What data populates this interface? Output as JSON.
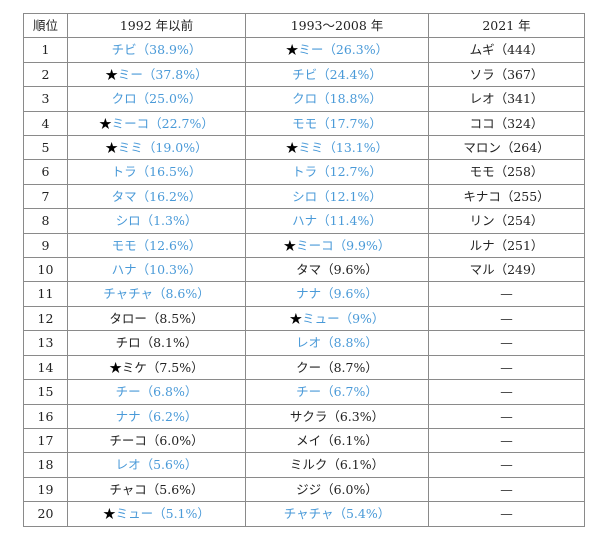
{
  "table": {
    "header": [
      "順位",
      "1992 年以前",
      "1993～2008 年",
      "2021 年"
    ],
    "rows": [
      {
        "rank": "1",
        "a": {
          "star": "",
          "text": "チビ（38.9%）",
          "blue": true
        },
        "b": {
          "star": "★",
          "text": "ミー（26.3%）",
          "blue": true
        },
        "c": "ムギ（444）"
      },
      {
        "rank": "2",
        "a": {
          "star": "★",
          "text": "ミー（37.8%）",
          "blue": true
        },
        "b": {
          "star": "",
          "text": "チビ（24.4%）",
          "blue": true
        },
        "c": "ソラ（367）"
      },
      {
        "rank": "3",
        "a": {
          "star": "",
          "text": "クロ（25.0%）",
          "blue": true
        },
        "b": {
          "star": "",
          "text": "クロ（18.8%）",
          "blue": true
        },
        "c": "レオ（341）"
      },
      {
        "rank": "4",
        "a": {
          "star": "★",
          "text": "ミーコ（22.7%）",
          "blue": true
        },
        "b": {
          "star": "",
          "text": "モモ（17.7%）",
          "blue": true
        },
        "c": "ココ（324）"
      },
      {
        "rank": "5",
        "a": {
          "star": "★",
          "text": "ミミ（19.0%）",
          "blue": true
        },
        "b": {
          "star": "★",
          "text": "ミミ（13.1%）",
          "blue": true
        },
        "c": "マロン（264）"
      },
      {
        "rank": "6",
        "a": {
          "star": "",
          "text": "トラ（16.5%）",
          "blue": true
        },
        "b": {
          "star": "",
          "text": "トラ（12.7%）",
          "blue": true
        },
        "c": "モモ（258）"
      },
      {
        "rank": "7",
        "a": {
          "star": "",
          "text": "タマ（16.2%）",
          "blue": true
        },
        "b": {
          "star": "",
          "text": "シロ（12.1%）",
          "blue": true
        },
        "c": "キナコ（255）"
      },
      {
        "rank": "8",
        "a": {
          "star": "",
          "text": "シロ（1.3%）",
          "blue": true
        },
        "b": {
          "star": "",
          "text": "ハナ（11.4%）",
          "blue": true
        },
        "c": "リン（254）"
      },
      {
        "rank": "9",
        "a": {
          "star": "",
          "text": "モモ（12.6%）",
          "blue": true
        },
        "b": {
          "star": "★",
          "text": "ミーコ（9.9%）",
          "blue": true
        },
        "c": "ルナ（251）"
      },
      {
        "rank": "10",
        "a": {
          "star": "",
          "text": "ハナ（10.3%）",
          "blue": true
        },
        "b": {
          "star": "",
          "text": "タマ（9.6%）",
          "blue": false
        },
        "c": "マル（249）"
      },
      {
        "rank": "11",
        "a": {
          "star": "",
          "text": "チャチャ（8.6%）",
          "blue": true
        },
        "b": {
          "star": "",
          "text": "ナナ（9.6%）",
          "blue": true
        },
        "c": "—"
      },
      {
        "rank": "12",
        "a": {
          "star": "",
          "text": "タロー（8.5%）",
          "blue": false
        },
        "b": {
          "star": "★",
          "text": "ミュー（9%）",
          "blue": true
        },
        "c": "—"
      },
      {
        "rank": "13",
        "a": {
          "star": "",
          "text": "チロ（8.1%）",
          "blue": false
        },
        "b": {
          "star": "",
          "text": "レオ（8.8%）",
          "blue": true
        },
        "c": "—"
      },
      {
        "rank": "14",
        "a": {
          "star": "★",
          "text": "ミケ（7.5%）",
          "blue": false
        },
        "b": {
          "star": "",
          "text": "クー（8.7%）",
          "blue": false
        },
        "c": "—"
      },
      {
        "rank": "15",
        "a": {
          "star": "",
          "text": "チー（6.8%）",
          "blue": true
        },
        "b": {
          "star": "",
          "text": "チー（6.7%）",
          "blue": true
        },
        "c": "—"
      },
      {
        "rank": "16",
        "a": {
          "star": "",
          "text": "ナナ（6.2%）",
          "blue": true
        },
        "b": {
          "star": "",
          "text": "サクラ（6.3%）",
          "blue": false
        },
        "c": "—"
      },
      {
        "rank": "17",
        "a": {
          "star": "",
          "text": "チーコ（6.0%）",
          "blue": false
        },
        "b": {
          "star": "",
          "text": "メイ（6.1%）",
          "blue": false
        },
        "c": "—"
      },
      {
        "rank": "18",
        "a": {
          "star": "",
          "text": "レオ（5.6%）",
          "blue": true
        },
        "b": {
          "star": "",
          "text": "ミルク（6.1%）",
          "blue": false
        },
        "c": "—"
      },
      {
        "rank": "19",
        "a": {
          "star": "",
          "text": "チャコ（5.6%）",
          "blue": false
        },
        "b": {
          "star": "",
          "text": "ジジ（6.0%）",
          "blue": false
        },
        "c": "—"
      },
      {
        "rank": "20",
        "a": {
          "star": "★",
          "text": "ミュー（5.1%）",
          "blue": true
        },
        "b": {
          "star": "",
          "text": "チャチャ（5.4%）",
          "blue": true
        },
        "c": "—"
      }
    ]
  }
}
